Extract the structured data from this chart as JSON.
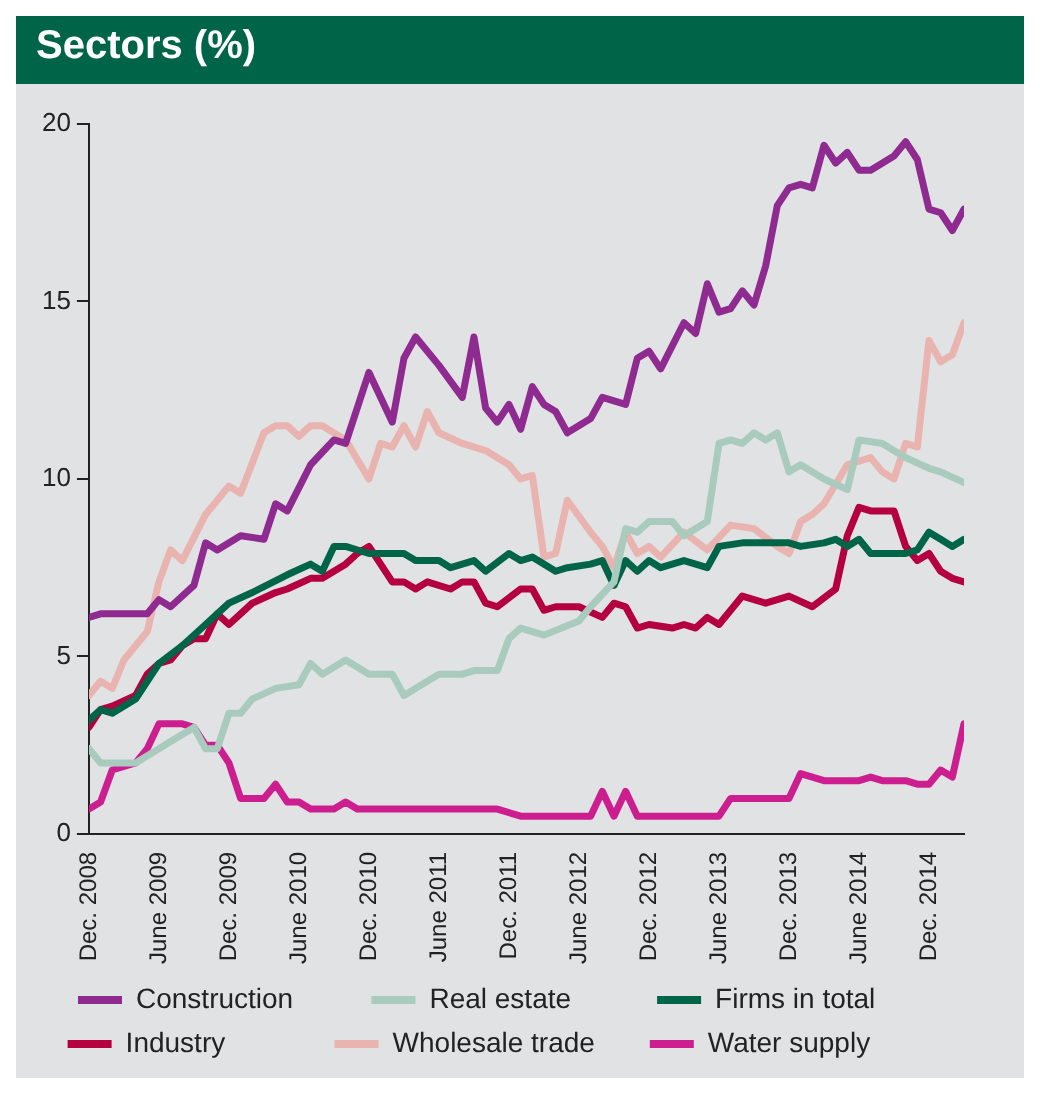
{
  "chart_data": {
    "type": "line",
    "title": "Sectors (%)",
    "xlim": [
      "2008-12",
      "2015-03"
    ],
    "xticks": [
      {
        "value": "2008-12",
        "label": "Dec. 2008"
      },
      {
        "value": "2009-06",
        "label": "June 2009"
      },
      {
        "value": "2009-12",
        "label": "Dec. 2009"
      },
      {
        "value": "2010-06",
        "label": "June 2010"
      },
      {
        "value": "2010-12",
        "label": "Dec. 2010"
      },
      {
        "value": "2011-06",
        "label": "June 2011"
      },
      {
        "value": "2011-12",
        "label": "Dec. 2011"
      },
      {
        "value": "2012-06",
        "label": "June 2012"
      },
      {
        "value": "2012-12",
        "label": "Dec. 2012"
      },
      {
        "value": "2013-06",
        "label": "June 2013"
      },
      {
        "value": "2013-12",
        "label": "Dec. 2013"
      },
      {
        "value": "2014-06",
        "label": "June 2014"
      },
      {
        "value": "2014-12",
        "label": "Dec. 2014"
      }
    ],
    "ylim": [
      0,
      20
    ],
    "yticks": [
      0,
      5,
      10,
      15,
      20
    ],
    "grid": false,
    "legend": "bottom",
    "marker": "none",
    "line_style": "solid",
    "series": [
      {
        "name": "Construction",
        "color": "#8e2a90",
        "x": [
          "2008-12",
          "2009-01",
          "2009-05",
          "2009-06",
          "2009-07",
          "2009-09",
          "2009-10",
          "2009-11",
          "2010-01",
          "2010-03",
          "2010-04",
          "2010-05",
          "2010-07",
          "2010-09",
          "2010-10",
          "2010-12",
          "2011-02",
          "2011-03",
          "2011-04",
          "2011-06",
          "2011-08",
          "2011-09",
          "2011-10",
          "2011-11",
          "2011-12",
          "2012-01",
          "2012-02",
          "2012-03",
          "2012-04",
          "2012-05",
          "2012-07",
          "2012-08",
          "2012-10",
          "2012-11",
          "2012-12",
          "2013-01",
          "2013-03",
          "2013-04",
          "2013-05",
          "2013-06",
          "2013-07",
          "2013-08",
          "2013-09",
          "2013-10",
          "2013-11",
          "2013-12",
          "2014-01",
          "2014-02",
          "2014-03",
          "2014-04",
          "2014-05",
          "2014-06",
          "2014-07",
          "2014-09",
          "2014-10",
          "2014-11",
          "2014-12",
          "2015-01",
          "2015-02",
          "2015-03"
        ],
        "values": [
          6.1,
          6.2,
          6.2,
          6.6,
          6.4,
          7.0,
          8.2,
          8.0,
          8.4,
          8.3,
          9.3,
          9.1,
          10.4,
          11.1,
          11.0,
          13.0,
          11.6,
          13.4,
          14.0,
          13.2,
          12.3,
          14.0,
          12.0,
          11.6,
          12.1,
          11.4,
          12.6,
          12.1,
          11.9,
          11.3,
          11.7,
          12.3,
          12.1,
          13.4,
          13.6,
          13.1,
          14.4,
          14.1,
          15.5,
          14.7,
          14.8,
          15.3,
          14.9,
          16.0,
          17.7,
          18.2,
          18.3,
          18.2,
          19.4,
          18.9,
          19.2,
          18.7,
          18.7,
          19.1,
          19.5,
          19.0,
          17.6,
          17.5,
          17.0,
          17.6
        ]
      },
      {
        "name": "Real estate",
        "color": "#a8cbbd",
        "x": [
          "2008-12",
          "2009-01",
          "2009-04",
          "2009-06",
          "2009-07",
          "2009-09",
          "2009-10",
          "2009-11",
          "2009-12",
          "2010-01",
          "2010-02",
          "2010-04",
          "2010-06",
          "2010-07",
          "2010-08",
          "2010-10",
          "2010-12",
          "2011-02",
          "2011-03",
          "2011-04",
          "2011-06",
          "2011-08",
          "2011-09",
          "2011-11",
          "2011-12",
          "2012-01",
          "2012-03",
          "2012-06",
          "2012-07",
          "2012-09",
          "2012-10",
          "2012-11",
          "2012-12",
          "2013-02",
          "2013-03",
          "2013-05",
          "2013-06",
          "2013-07",
          "2013-08",
          "2013-09",
          "2013-10",
          "2013-11",
          "2013-12",
          "2014-01",
          "2014-03",
          "2014-05",
          "2014-06",
          "2014-08",
          "2014-10",
          "2014-12",
          "2015-01",
          "2015-03"
        ],
        "values": [
          2.4,
          2.0,
          2.0,
          2.4,
          2.6,
          3.0,
          2.4,
          2.4,
          3.4,
          3.4,
          3.8,
          4.1,
          4.2,
          4.8,
          4.5,
          4.9,
          4.5,
          4.5,
          3.9,
          4.1,
          4.5,
          4.5,
          4.6,
          4.6,
          5.5,
          5.8,
          5.6,
          6.0,
          6.4,
          7.1,
          8.6,
          8.5,
          8.8,
          8.8,
          8.4,
          8.8,
          11.0,
          11.1,
          11.0,
          11.3,
          11.1,
          11.3,
          10.2,
          10.4,
          10.0,
          9.7,
          11.1,
          11.0,
          10.6,
          10.3,
          10.2,
          9.9
        ]
      },
      {
        "name": "Firms in total",
        "color": "#006548",
        "x": [
          "2008-12",
          "2009-01",
          "2009-02",
          "2009-04",
          "2009-06",
          "2009-08",
          "2009-10",
          "2009-12",
          "2010-02",
          "2010-05",
          "2010-07",
          "2010-08",
          "2010-09",
          "2010-10",
          "2010-12",
          "2011-03",
          "2011-04",
          "2011-06",
          "2011-07",
          "2011-09",
          "2011-10",
          "2011-12",
          "2012-01",
          "2012-02",
          "2012-04",
          "2012-05",
          "2012-07",
          "2012-08",
          "2012-09",
          "2012-10",
          "2012-11",
          "2012-12",
          "2013-01",
          "2013-03",
          "2013-05",
          "2013-06",
          "2013-08",
          "2013-12",
          "2014-01",
          "2014-03",
          "2014-04",
          "2014-05",
          "2014-06",
          "2014-07",
          "2014-10",
          "2014-11",
          "2014-12",
          "2015-01",
          "2015-02",
          "2015-03"
        ],
        "values": [
          3.2,
          3.5,
          3.4,
          3.8,
          4.8,
          5.3,
          5.9,
          6.5,
          6.8,
          7.3,
          7.6,
          7.4,
          8.1,
          8.1,
          7.9,
          7.9,
          7.7,
          7.7,
          7.5,
          7.7,
          7.4,
          7.9,
          7.7,
          7.8,
          7.4,
          7.5,
          7.6,
          7.7,
          7.0,
          7.7,
          7.4,
          7.7,
          7.5,
          7.7,
          7.5,
          8.1,
          8.2,
          8.2,
          8.1,
          8.2,
          8.3,
          8.1,
          8.3,
          7.9,
          7.9,
          8.0,
          8.5,
          8.3,
          8.1,
          8.3
        ]
      },
      {
        "name": "Industry",
        "color": "#b5003f",
        "x": [
          "2008-12",
          "2009-01",
          "2009-02",
          "2009-04",
          "2009-05",
          "2009-06",
          "2009-07",
          "2009-08",
          "2009-09",
          "2009-10",
          "2009-11",
          "2009-12",
          "2010-02",
          "2010-04",
          "2010-05",
          "2010-07",
          "2010-08",
          "2010-10",
          "2010-11",
          "2010-12",
          "2011-02",
          "2011-03",
          "2011-04",
          "2011-05",
          "2011-07",
          "2011-08",
          "2011-09",
          "2011-10",
          "2011-11",
          "2012-01",
          "2012-02",
          "2012-03",
          "2012-04",
          "2012-06",
          "2012-08",
          "2012-09",
          "2012-10",
          "2012-11",
          "2012-12",
          "2013-02",
          "2013-03",
          "2013-04",
          "2013-05",
          "2013-06",
          "2013-08",
          "2013-10",
          "2013-12",
          "2014-02",
          "2014-04",
          "2014-05",
          "2014-06",
          "2014-07",
          "2014-09",
          "2014-10",
          "2014-11",
          "2014-12",
          "2015-01",
          "2015-02",
          "2015-03"
        ],
        "values": [
          3.0,
          3.5,
          3.6,
          3.9,
          4.5,
          4.8,
          4.9,
          5.3,
          5.5,
          5.5,
          6.2,
          5.9,
          6.5,
          6.8,
          6.9,
          7.2,
          7.2,
          7.6,
          7.9,
          8.1,
          7.1,
          7.1,
          6.9,
          7.1,
          6.9,
          7.1,
          7.1,
          6.5,
          6.4,
          6.9,
          6.9,
          6.3,
          6.4,
          6.4,
          6.1,
          6.5,
          6.4,
          5.8,
          5.9,
          5.8,
          5.9,
          5.8,
          6.1,
          5.9,
          6.7,
          6.5,
          6.7,
          6.4,
          6.9,
          8.4,
          9.2,
          9.1,
          9.1,
          8.1,
          7.7,
          7.9,
          7.4,
          7.2,
          7.1
        ]
      },
      {
        "name": "Wholesale trade",
        "color": "#e9b4b0",
        "x": [
          "2008-12",
          "2009-01",
          "2009-02",
          "2009-03",
          "2009-05",
          "2009-06",
          "2009-07",
          "2009-08",
          "2009-10",
          "2009-11",
          "2009-12",
          "2010-01",
          "2010-03",
          "2010-04",
          "2010-05",
          "2010-06",
          "2010-07",
          "2010-08",
          "2010-10",
          "2010-12",
          "2011-01",
          "2011-02",
          "2011-03",
          "2011-04",
          "2011-05",
          "2011-06",
          "2011-08",
          "2011-10",
          "2011-12",
          "2012-01",
          "2012-02",
          "2012-03",
          "2012-04",
          "2012-05",
          "2012-07",
          "2012-08",
          "2012-09",
          "2012-10",
          "2012-11",
          "2012-12",
          "2013-01",
          "2013-03",
          "2013-05",
          "2013-07",
          "2013-09",
          "2013-11",
          "2013-12",
          "2014-01",
          "2014-02",
          "2014-03",
          "2014-05",
          "2014-06",
          "2014-07",
          "2014-08",
          "2014-09",
          "2014-10",
          "2014-11",
          "2014-12",
          "2015-01",
          "2015-02",
          "2015-03"
        ],
        "values": [
          3.9,
          4.3,
          4.1,
          4.9,
          5.7,
          7.1,
          8.0,
          7.7,
          9.0,
          9.4,
          9.8,
          9.6,
          11.3,
          11.5,
          11.5,
          11.2,
          11.5,
          11.5,
          11.1,
          10.0,
          11.0,
          10.9,
          11.5,
          10.9,
          11.9,
          11.3,
          11.0,
          10.8,
          10.4,
          10.0,
          10.1,
          7.8,
          7.9,
          9.4,
          8.5,
          8.1,
          7.5,
          8.5,
          7.9,
          8.1,
          7.8,
          8.5,
          8.0,
          8.7,
          8.6,
          8.1,
          7.9,
          8.8,
          9.0,
          9.3,
          10.4,
          10.5,
          10.6,
          10.2,
          10.0,
          11.0,
          10.9,
          13.9,
          13.3,
          13.5,
          14.4
        ]
      },
      {
        "name": "Water supply",
        "color": "#cc1e8e",
        "x": [
          "2008-12",
          "2009-01",
          "2009-02",
          "2009-04",
          "2009-05",
          "2009-06",
          "2009-08",
          "2009-09",
          "2009-10",
          "2009-11",
          "2009-12",
          "2010-01",
          "2010-03",
          "2010-04",
          "2010-05",
          "2010-06",
          "2010-07",
          "2010-09",
          "2010-10",
          "2010-11",
          "2011-11",
          "2012-01",
          "2012-07",
          "2012-08",
          "2012-09",
          "2012-10",
          "2012-11",
          "2013-06",
          "2013-07",
          "2013-12",
          "2014-01",
          "2014-02",
          "2014-03",
          "2014-06",
          "2014-07",
          "2014-08",
          "2014-10",
          "2014-11",
          "2014-12",
          "2015-01",
          "2015-02",
          "2015-03"
        ],
        "values": [
          0.7,
          0.9,
          1.8,
          2.0,
          2.4,
          3.1,
          3.1,
          3.0,
          2.5,
          2.5,
          2.0,
          1.0,
          1.0,
          1.4,
          0.9,
          0.9,
          0.7,
          0.7,
          0.9,
          0.7,
          0.7,
          0.5,
          0.5,
          1.2,
          0.5,
          1.2,
          0.5,
          0.5,
          1.0,
          1.0,
          1.7,
          1.6,
          1.5,
          1.5,
          1.6,
          1.5,
          1.5,
          1.4,
          1.4,
          1.8,
          1.6,
          3.1
        ]
      }
    ]
  }
}
